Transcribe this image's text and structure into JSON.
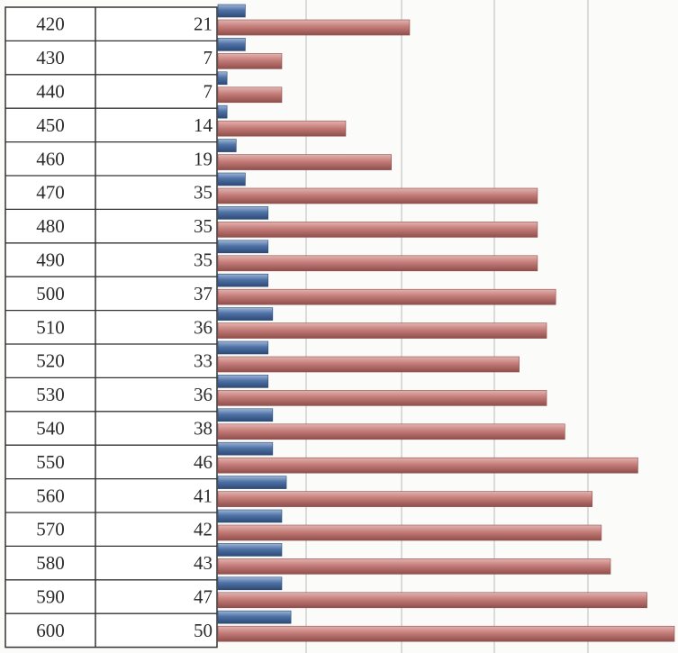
{
  "chart_data": {
    "type": "bar",
    "orientation": "horizontal",
    "categories": [
      "420",
      "430",
      "440",
      "450",
      "460",
      "470",
      "480",
      "490",
      "500",
      "510",
      "520",
      "530",
      "540",
      "550",
      "560",
      "570",
      "580",
      "590",
      "600"
    ],
    "values": [
      21,
      7,
      7,
      14,
      19,
      35,
      35,
      35,
      37,
      36,
      33,
      36,
      38,
      46,
      41,
      42,
      43,
      47,
      50
    ],
    "series": [
      {
        "color": "#c47c78",
        "values": [
          21,
          7,
          7,
          14,
          19,
          35,
          35,
          35,
          37,
          36,
          33,
          36,
          38,
          46,
          41,
          42,
          43,
          47,
          50
        ]
      },
      {
        "color": "#4f72a6",
        "values": [
          3,
          3,
          1,
          1,
          2,
          3,
          5.5,
          5.5,
          5.5,
          6,
          5.5,
          5.5,
          6,
          6,
          7.5,
          7,
          7,
          7,
          8
        ]
      }
    ],
    "xlim": [
      0,
      50
    ],
    "grid": true,
    "legend": "none"
  }
}
